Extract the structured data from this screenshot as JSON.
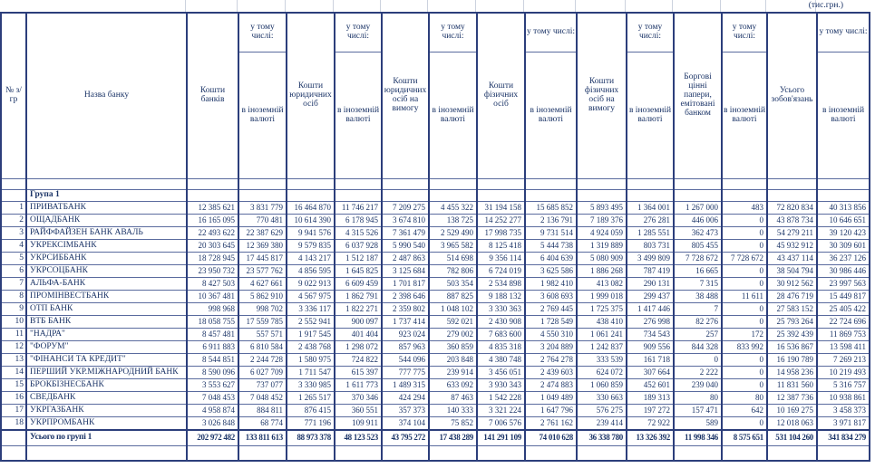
{
  "meta": {
    "units_note": "(тис.грн.)"
  },
  "table": {
    "headers": {
      "num": "№ з/гр",
      "bank_name": "Назва банку",
      "including_label": "у тому числі:",
      "fx_label": "в іноземній валюті",
      "main": [
        "Кошти банків",
        "Кошти юридичних осіб",
        "Кошти юридичних осіб на вимогу",
        "Кошти фізичних осіб",
        "Кошти фізичних осіб на вимогу",
        "Боргові цінні папери, емітовані банком",
        "Усього зобов'язань"
      ]
    },
    "group_label": "Група 1",
    "rows": [
      {
        "num": "1",
        "name": "ПРИВАТБАНК",
        "values": [
          "12 385 621",
          "3 831 779",
          "16 464 870",
          "11 746 217",
          "7 209 275",
          "4 455 322",
          "31 194 158",
          "15 685 852",
          "5 893 495",
          "1 364 001",
          "1 267 000",
          "483",
          "72 820 834",
          "40 313 856"
        ]
      },
      {
        "num": "2",
        "name": "ОЩАДБАНК",
        "values": [
          "16 165 095",
          "770 481",
          "10 614 390",
          "6 178 945",
          "3 674 810",
          "138 725",
          "14 252 277",
          "2 136 791",
          "7 189 376",
          "276 281",
          "446 006",
          "0",
          "43 878 734",
          "10 646 651"
        ]
      },
      {
        "num": "3",
        "name": "РАЙФФАЙЗЕН БАНК АВАЛЬ",
        "values": [
          "22 493 622",
          "22 387 629",
          "9 941 576",
          "4 315 526",
          "7 361 479",
          "2 529 490",
          "17 998 735",
          "9 731 514",
          "4 924 059",
          "1 285 551",
          "362 473",
          "0",
          "54 279 211",
          "39 120 423"
        ]
      },
      {
        "num": "4",
        "name": "УКРЕКСІМБАНК",
        "values": [
          "20 303 645",
          "12 369 380",
          "9 579 835",
          "6 037 928",
          "5 990 540",
          "3 965 582",
          "8 125 418",
          "5 444 738",
          "1 319 889",
          "803 731",
          "805 455",
          "0",
          "45 932 912",
          "30 309 601"
        ]
      },
      {
        "num": "5",
        "name": "УКРСИББАНК",
        "values": [
          "18 728 945",
          "17 445 817",
          "4 143 217",
          "1 512 187",
          "2 487 863",
          "514 698",
          "9 356 114",
          "6 404 639",
          "5 080 909",
          "3 499 809",
          "7 728 672",
          "7 728 672",
          "43 437 114",
          "36 237 126"
        ]
      },
      {
        "num": "6",
        "name": "УКРСОЦБАНК",
        "values": [
          "23 950 732",
          "23 577 762",
          "4 856 595",
          "1 645 825",
          "3 125 684",
          "782 806",
          "6 724 019",
          "3 625 586",
          "1 886 268",
          "787 419",
          "16 665",
          "0",
          "38 504 794",
          "30 986 446"
        ]
      },
      {
        "num": "7",
        "name": "АЛЬФА-БАНК",
        "values": [
          "8 427 503",
          "4 627 661",
          "9 022 913",
          "6 609 459",
          "1 701 817",
          "503 354",
          "2 534 898",
          "1 982 410",
          "413 082",
          "290 131",
          "7 315",
          "0",
          "30 912 562",
          "23 997 563"
        ]
      },
      {
        "num": "8",
        "name": "ПРОМІНВЕСТБАНК",
        "values": [
          "10 367 481",
          "5 862 910",
          "4 567 975",
          "1 862 791",
          "2 398 646",
          "887 825",
          "9 188 132",
          "3 608 693",
          "1 999 018",
          "299 437",
          "38 488",
          "11 611",
          "28 476 719",
          "15 449 817"
        ]
      },
      {
        "num": "9",
        "name": "ОТП БАНК",
        "values": [
          "998 968",
          "998 702",
          "3 336 117",
          "1 822 271",
          "2 359 802",
          "1 048 102",
          "3 330 363",
          "2 769 445",
          "1 725 375",
          "1 417 446",
          "7",
          "0",
          "27 583 152",
          "25 405 422"
        ]
      },
      {
        "num": "10",
        "name": "ВТБ БАНК",
        "values": [
          "18 058 755",
          "17 559 785",
          "2 552 941",
          "900 097",
          "1 737 414",
          "592 021",
          "2 430 908",
          "1 728 549",
          "438 410",
          "276 998",
          "82 276",
          "0",
          "25 793 264",
          "22 724 696"
        ]
      },
      {
        "num": "11",
        "name": "\"НАДРА\"",
        "values": [
          "8 457 481",
          "557 571",
          "1 917 545",
          "401 404",
          "923 024",
          "279 002",
          "7 683 600",
          "4 550 310",
          "1 061 241",
          "734 543",
          "257",
          "172",
          "25 392 439",
          "11 869 753"
        ]
      },
      {
        "num": "12",
        "name": "\"ФОРУМ\"",
        "values": [
          "6 911 883",
          "6 810 584",
          "2 438 768",
          "1 298 072",
          "857 963",
          "360 859",
          "4 835 318",
          "3 204 889",
          "1 242 837",
          "909 556",
          "844 328",
          "833 992",
          "16 536 867",
          "13 598 411"
        ]
      },
      {
        "num": "13",
        "name": "\"ФІНАНСИ ТА КРЕДИТ\"",
        "values": [
          "8 544 851",
          "2 244 728",
          "1 580 975",
          "724 822",
          "544 096",
          "203 848",
          "4 380 748",
          "2 764 278",
          "333 539",
          "161 718",
          "0",
          "0",
          "16 190 789",
          "7 269 213"
        ]
      },
      {
        "num": "14",
        "name": "ПЕРШИЙ УКР.МІЖНАРОДНИЙ БАНК",
        "values": [
          "8 590 096",
          "6 027 709",
          "1 711 547",
          "615 397",
          "777 775",
          "239 914",
          "3 456 051",
          "2 439 603",
          "624 072",
          "307 664",
          "2 222",
          "0",
          "14 958 236",
          "10 219 493"
        ]
      },
      {
        "num": "15",
        "name": "БРОКБІЗНЕСБАНК",
        "values": [
          "3 553 627",
          "737 077",
          "3 330 985",
          "1 611 773",
          "1 489 315",
          "633 092",
          "3 930 343",
          "2 474 883",
          "1 060 859",
          "452 601",
          "239 040",
          "0",
          "11 831 560",
          "5 316 757"
        ]
      },
      {
        "num": "16",
        "name": "СВЕДБАНК",
        "values": [
          "7 048 453",
          "7 048 452",
          "1 265 517",
          "370 346",
          "424 294",
          "87 463",
          "1 542 228",
          "1 049 489",
          "330 663",
          "189 313",
          "80",
          "80",
          "12 387 736",
          "10 938 861"
        ]
      },
      {
        "num": "17",
        "name": "УКРГАЗБАНК",
        "values": [
          "4 958 874",
          "884 811",
          "876 415",
          "360 551",
          "357 373",
          "140 333",
          "3 321 224",
          "1 647 796",
          "576 275",
          "197 272",
          "157 471",
          "642",
          "10 169 275",
          "3 458 373"
        ]
      },
      {
        "num": "18",
        "name": "УКРПРОМБАНК",
        "values": [
          "3 026 848",
          "68 774",
          "771 196",
          "109 911",
          "374 104",
          "75 852",
          "7 006 576",
          "2 761 162",
          "239 414",
          "72 922",
          "589",
          "0",
          "12 018 063",
          "3 971 817"
        ]
      }
    ],
    "total": {
      "label": "Усього по групі 1",
      "values": [
        "202 972 482",
        "133 811 613",
        "88 973 378",
        "48 123 523",
        "43 795 272",
        "17 438 289",
        "141 291 109",
        "74 010 628",
        "36 338 780",
        "13 326 392",
        "11 998 346",
        "8 575 651",
        "531 104 260",
        "341 834 279"
      ]
    }
  }
}
